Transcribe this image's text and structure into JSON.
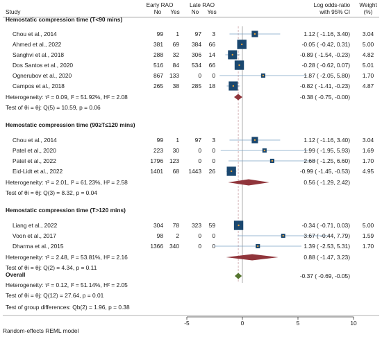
{
  "header": {
    "study": "Study",
    "early_group": "Early RAO",
    "late_group": "Late RAO",
    "no": "No",
    "yes": "Yes",
    "effect_line1": "Log odds-ratio",
    "effect_line2": "with 95% CI",
    "weight_line1": "Weight",
    "weight_line2": "(%)"
  },
  "footer_note": "Random-effects REML model",
  "colors": {
    "marker": "#1a476f",
    "ci_line": "#7aa0c4",
    "diamond_subgroup": "#90353b",
    "diamond_overall": "#55752f",
    "zero_line": "#888888",
    "overall_line": "#c9a0a4"
  },
  "chart_data": {
    "type": "forest",
    "x_axis": {
      "ticks": [
        "-5",
        "0",
        "5",
        "10"
      ],
      "tick_values": [
        -5,
        0,
        5,
        10
      ],
      "xlim": [
        -5,
        10
      ]
    },
    "overall_estimate": -0.37,
    "groups": [
      {
        "title": "Hemostatic compression time (T<90 mins)",
        "studies": [
          {
            "study": "Chou et al., 2014",
            "early_no": "99",
            "early_yes": "1",
            "late_no": "97",
            "late_yes": "3",
            "est": 1.12,
            "lo": -1.16,
            "hi": 3.4,
            "ci_text": "1.12 ( -1.16,  3.40)",
            "weight": "3.04"
          },
          {
            "study": "Ahmed et al., 2022",
            "early_no": "381",
            "early_yes": "69",
            "late_no": "384",
            "late_yes": "66",
            "est": -0.05,
            "lo": -0.42,
            "hi": 0.31,
            "ci_text": "-0.05 ( -0.42,  0.31)",
            "weight": "5.00"
          },
          {
            "study": "Sanghvi et al., 2018",
            "early_no": "288",
            "early_yes": "32",
            "late_no": "306",
            "late_yes": "14",
            "est": -0.89,
            "lo": -1.54,
            "hi": -0.23,
            "ci_text": "-0.89 ( -1.54, -0.23)",
            "weight": "4.82"
          },
          {
            "study": "Dos Santos et al., 2020",
            "early_no": "516",
            "early_yes": "84",
            "late_no": "534",
            "late_yes": "66",
            "est": -0.28,
            "lo": -0.62,
            "hi": 0.07,
            "ci_text": "-0.28 ( -0.62,  0.07)",
            "weight": "5.01"
          },
          {
            "study": "Ognerubov et al., 2020",
            "early_no": "867",
            "early_yes": "133",
            "late_no": "0",
            "late_yes": "0",
            "est": 1.87,
            "lo": -2.05,
            "hi": 5.8,
            "ci_text": "1.87 ( -2.05,  5.80)",
            "weight": "1.70"
          },
          {
            "study": "Campos et al., 2018",
            "early_no": "265",
            "early_yes": "38",
            "late_no": "285",
            "late_yes": "18",
            "est": -0.82,
            "lo": -1.41,
            "hi": -0.23,
            "ci_text": "-0.82 ( -1.41, -0.23)",
            "weight": "4.87"
          }
        ],
        "heterogeneity": "Heterogeneity: τ² = 0.09, I² = 51.92%, H² = 2.08",
        "pooled": {
          "est": -0.38,
          "lo": -0.75,
          "hi": 0.0,
          "ci_text": "-0.38 ( -0.75, -0.00)"
        },
        "test": "Test of θi = θj: Q(5) = 10.59, p = 0.06"
      },
      {
        "title": "Hemostatic compression time (90≥T≤120 mins)",
        "studies": [
          {
            "study": "Chou et al., 2014",
            "early_no": "99",
            "early_yes": "1",
            "late_no": "97",
            "late_yes": "3",
            "est": 1.12,
            "lo": -1.16,
            "hi": 3.4,
            "ci_text": "1.12 ( -1.16,  3.40)",
            "weight": "3.04"
          },
          {
            "study": "Patel et al., 2020",
            "early_no": "223",
            "early_yes": "30",
            "late_no": "0",
            "late_yes": "0",
            "est": 1.99,
            "lo": -1.95,
            "hi": 5.93,
            "ci_text": "1.99 ( -1.95,  5.93)",
            "weight": "1.69"
          },
          {
            "study": "Patel et al., 2022",
            "early_no": "1796",
            "early_yes": "123",
            "late_no": "0",
            "late_yes": "0",
            "est": 2.68,
            "lo": -1.25,
            "hi": 6.6,
            "ci_text": "2.68 ( -1.25,  6.60)",
            "weight": "1.70"
          },
          {
            "study": "Eid-Lidt et al., 2022",
            "early_no": "1401",
            "early_yes": "68",
            "late_no": "1443",
            "late_yes": "26",
            "est": -0.99,
            "lo": -1.45,
            "hi": -0.53,
            "ci_text": "-0.99 ( -1.45, -0.53)",
            "weight": "4.95"
          }
        ],
        "heterogeneity": "Heterogeneity: τ² = 2.01, I² = 61.23%, H² = 2.58",
        "pooled": {
          "est": 0.56,
          "lo": -1.29,
          "hi": 2.42,
          "ci_text": "0.56 ( -1.29,  2.42)"
        },
        "test": "Test of θi = θj: Q(3) = 8.32, p = 0.04"
      },
      {
        "title": "Hemostatic compression time (T>120 mins)",
        "studies": [
          {
            "study": "Liang et al., 2022",
            "early_no": "304",
            "early_yes": "78",
            "late_no": "323",
            "late_yes": "59",
            "est": -0.34,
            "lo": -0.71,
            "hi": 0.03,
            "ci_text": "-0.34 ( -0.71,  0.03)",
            "weight": "5.00"
          },
          {
            "study": "Voon et al., 2017",
            "early_no": "98",
            "early_yes": "2",
            "late_no": "0",
            "late_yes": "0",
            "est": 3.67,
            "lo": -0.44,
            "hi": 7.79,
            "ci_text": "3.67 ( -0.44,  7.79)",
            "weight": "1.59"
          },
          {
            "study": "Dharma et al., 2015",
            "early_no": "1366",
            "early_yes": "340",
            "late_no": "0",
            "late_yes": "0",
            "est": 1.39,
            "lo": -2.53,
            "hi": 5.31,
            "ci_text": "1.39 ( -2.53,  5.31)",
            "weight": "1.70"
          }
        ],
        "heterogeneity": "Heterogeneity: τ² = 2.48, I² = 53.81%, H² = 2.16",
        "pooled": {
          "est": 0.88,
          "lo": -1.47,
          "hi": 3.23,
          "ci_text": "0.88 ( -1.47,  3.23)"
        },
        "test": "Test of θi = θj: Q(2) = 4.34, p = 0.11"
      }
    ],
    "overall": {
      "title": "Overall",
      "heterogeneity": "Heterogeneity: τ² = 0.12, I² = 51.14%, H² = 2.05",
      "pooled": {
        "est": -0.37,
        "lo": -0.69,
        "hi": -0.05,
        "ci_text": "-0.37 ( -0.69, -0.05)"
      },
      "test": "Test of θi = θj: Q(12) = 27.64, p = 0.01",
      "group_test": "Test of group differences: Qb(2) = 1.96, p = 0.38"
    }
  }
}
